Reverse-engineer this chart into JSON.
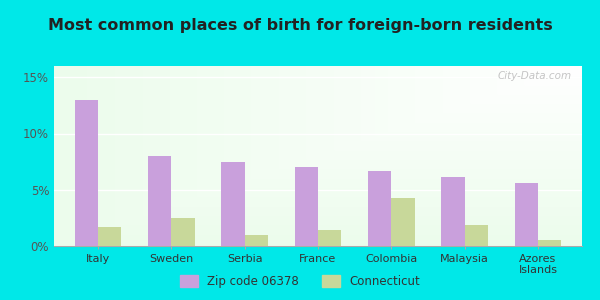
{
  "title": "Most common places of birth for foreign-born residents",
  "categories": [
    "Italy",
    "Sweden",
    "Serbia",
    "France",
    "Colombia",
    "Malaysia",
    "Azores\nIslands"
  ],
  "zip_values": [
    0.13,
    0.08,
    0.075,
    0.07,
    0.067,
    0.061,
    0.056
  ],
  "ct_values": [
    0.017,
    0.025,
    0.01,
    0.014,
    0.043,
    0.019,
    0.005
  ],
  "zip_color": "#c9a0dc",
  "ct_color": "#c8d89a",
  "background_color": "#00e8e8",
  "ylim": [
    0,
    0.16
  ],
  "yticks": [
    0.0,
    0.05,
    0.1,
    0.15
  ],
  "ytick_labels": [
    "0%",
    "5%",
    "10%",
    "15%"
  ],
  "legend_zip_label": "Zip code 06378",
  "legend_ct_label": "Connecticut",
  "title_fontsize": 11.5,
  "watermark_text": "City-Data.com"
}
